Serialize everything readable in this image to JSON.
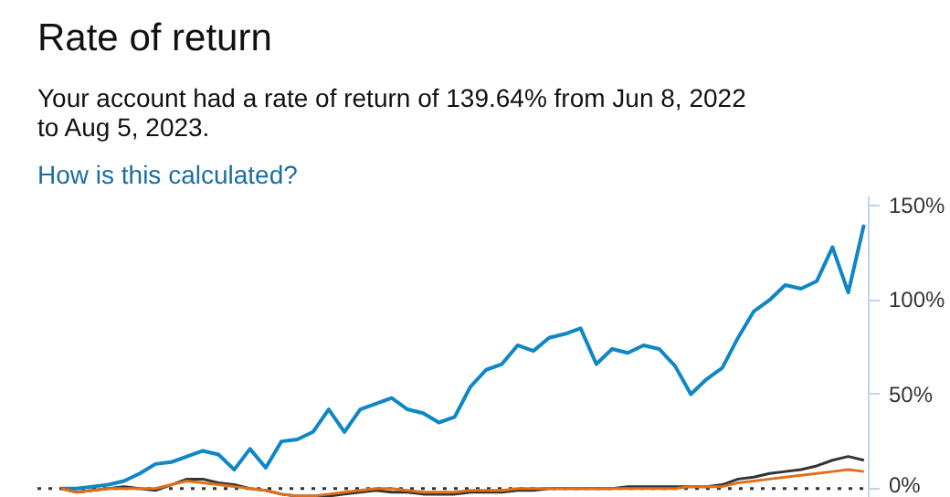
{
  "chart_data": {
    "type": "line",
    "title": "Rate of return",
    "subtitle": "Your account had a rate of return of 139.64% from Jun 8, 2022 to Aug 5, 2023.",
    "annotations": [
      "How is this calculated?"
    ],
    "categories": [
      null,
      null,
      null,
      null,
      null,
      null,
      null,
      null,
      null,
      null,
      null,
      null,
      null,
      null,
      null,
      null,
      null,
      null,
      null,
      null,
      null,
      null,
      null,
      null,
      null,
      null,
      null,
      null,
      null,
      null,
      null,
      null,
      null,
      null,
      null,
      null,
      null,
      null,
      null,
      null,
      null,
      null,
      null,
      null,
      null,
      null,
      null,
      null,
      null,
      null,
      null,
      null
    ],
    "series": [
      {
        "color": "#0f86c6",
        "values": [
          0,
          0,
          1,
          2,
          4,
          8,
          13,
          14,
          17,
          20,
          18,
          10,
          21,
          11,
          25,
          26,
          30,
          42,
          30,
          42,
          45,
          48,
          42,
          40,
          35,
          38,
          54,
          63,
          66,
          76,
          73,
          80,
          82,
          85,
          66,
          74,
          72,
          76,
          74,
          65,
          50,
          58,
          64,
          80,
          94,
          100,
          108,
          106,
          110,
          128,
          104,
          140
        ]
      },
      {
        "color": "#333333",
        "values": [
          0,
          -2,
          -1,
          0,
          1,
          0,
          -1,
          2,
          5,
          5,
          3,
          2,
          0,
          -1,
          -3,
          -4,
          -4,
          -4,
          -3,
          -2,
          -1,
          -2,
          -2,
          -3,
          -3,
          -3,
          -2,
          -2,
          -2,
          -1,
          -1,
          0,
          0,
          0,
          0,
          0,
          1,
          1,
          1,
          1,
          1,
          1,
          2,
          5,
          6,
          8,
          9,
          10,
          12,
          15,
          17,
          15
        ]
      },
      {
        "color": "#e0701a",
        "values": [
          0,
          -2,
          -1,
          0,
          0,
          0,
          0,
          2,
          4,
          3,
          2,
          1,
          0,
          -1,
          -3,
          -4,
          -4,
          -3,
          -2,
          -1,
          0,
          0,
          -1,
          -2,
          -2,
          -2,
          -1,
          -1,
          -1,
          0,
          0,
          0,
          0,
          0,
          0,
          0,
          0,
          0,
          0,
          0,
          1,
          1,
          1,
          3,
          4,
          5,
          6,
          7,
          8,
          9,
          10,
          9
        ]
      }
    ],
    "ylim": [
      -5,
      155
    ],
    "yticks": [
      {
        "value": 0,
        "label": "0%"
      },
      {
        "value": 50,
        "label": "50%"
      },
      {
        "value": 100,
        "label": "100%"
      },
      {
        "value": 150,
        "label": "150%"
      }
    ],
    "ref_lines": [
      {
        "axis": "y",
        "value": 0,
        "color": "#333333",
        "line_style": "dotted"
      }
    ],
    "tick_labels": "y",
    "grid": false,
    "line_style": "solid"
  }
}
